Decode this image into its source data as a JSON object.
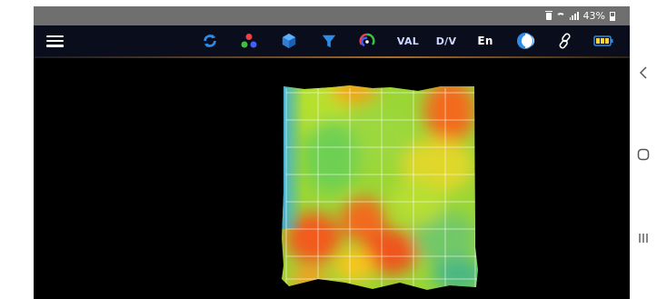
{
  "status_bar": {
    "battery_percent": "43%",
    "icons": [
      "trash-icon",
      "wifi-icon",
      "signal-icon",
      "battery-icon"
    ]
  },
  "toolbar": {
    "icons": [
      "menu-icon",
      "refresh-icon",
      "color-dots-icon",
      "cube-icon",
      "filter-icon",
      "palette-icon",
      "link-icon",
      "battery-icon",
      "half-moon-icon"
    ],
    "val_label": "VAL",
    "dv_label": "D/V",
    "lang_label": "En"
  },
  "nav": {
    "icons": [
      "back-icon",
      "home-icon",
      "recents-icon"
    ]
  },
  "colors": {
    "toolbar_bg": "#0a0d1c",
    "icon_blue": "#2d8ce8",
    "accent_orange": "#a86c2c",
    "heat_low": "#3fa8e8",
    "heat_mid": "#8ed63a",
    "heat_high": "#f04a1c"
  }
}
